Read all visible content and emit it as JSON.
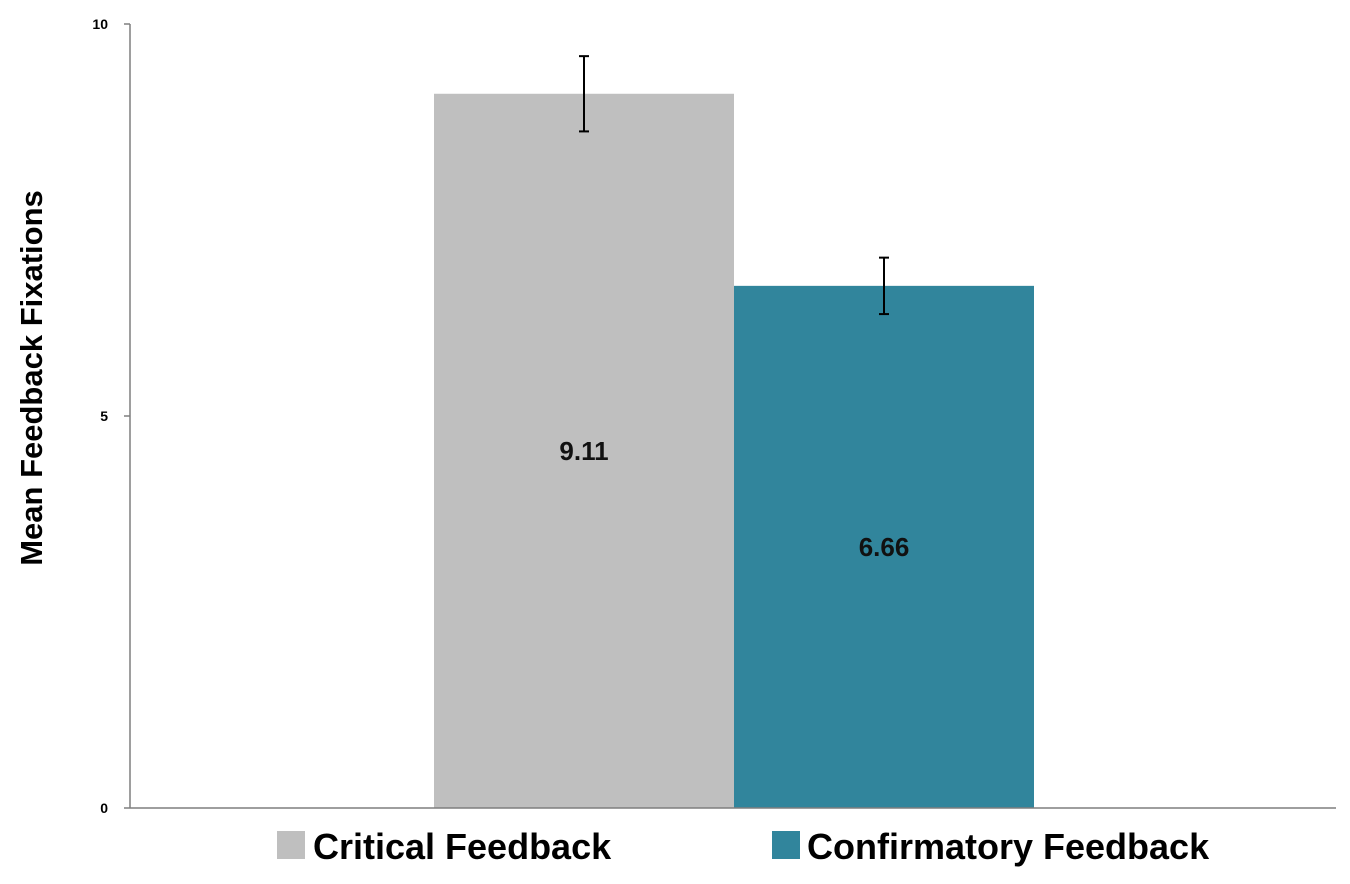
{
  "chart_data": {
    "type": "bar",
    "title": "",
    "xlabel": "",
    "ylabel": "Mean Feedback Fixations",
    "ylim": [
      0,
      10
    ],
    "yticks": [
      0,
      5,
      10
    ],
    "grid": false,
    "legend_position": "bottom",
    "series": [
      {
        "name": "Critical Feedback",
        "values": [
          9.11
        ],
        "value_label": "9.11",
        "error": 0.48,
        "color": "#bfbfbf"
      },
      {
        "name": "Confirmatory Feedback",
        "values": [
          6.66
        ],
        "value_label": "6.66",
        "error": 0.36,
        "color": "#31859c"
      }
    ]
  }
}
